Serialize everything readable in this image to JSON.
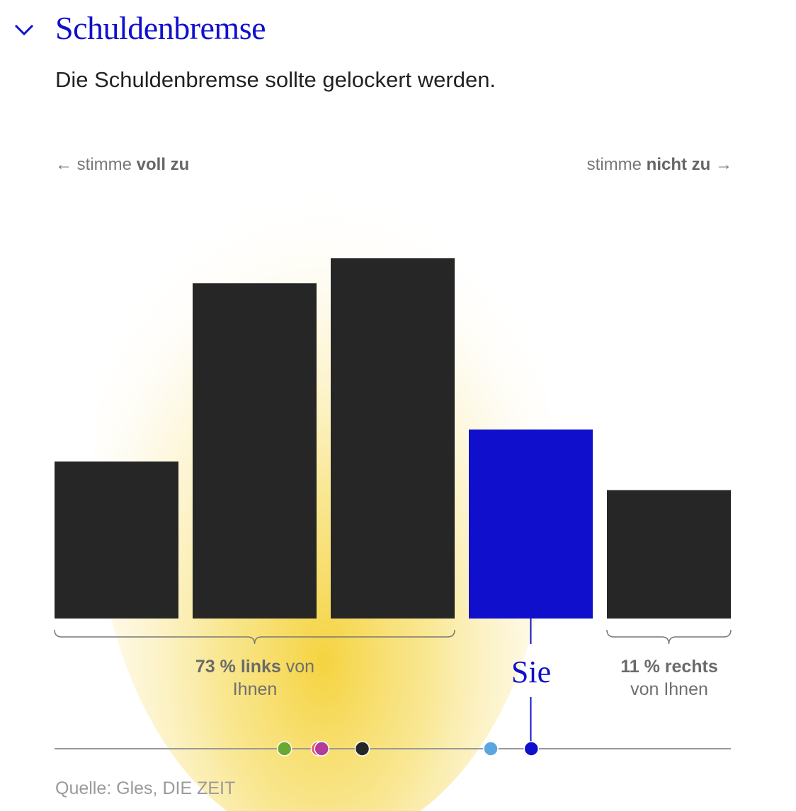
{
  "header": {
    "title": "Schuldenbremse",
    "question": "Die Schuldenbremse sollte gelockert werden."
  },
  "colors": {
    "accent": "#1010cc",
    "bar": "#262626",
    "glow": "#f5d33f"
  },
  "icons": {
    "collapse": "chevron-down-icon",
    "arrow_left": "arrow-left-icon",
    "arrow_right": "arrow-right-icon"
  },
  "scale": {
    "left_prefix": "← stimme ",
    "left_bold": "voll zu",
    "right_prefix": "stimme ",
    "right_bold": "nicht zu",
    "right_suffix": " →"
  },
  "chart_data": {
    "type": "bar",
    "ylim": [
      0,
      100
    ],
    "values": [
      44,
      94,
      101,
      53,
      36
    ],
    "highlight_index": 3,
    "glow_indices": [
      1,
      2
    ]
  },
  "groups": {
    "left_bold": "73 % links",
    "left_rest1": " von",
    "left_rest2": "Ihnen",
    "right_bold": "11 % rechts",
    "right_rest": "von Ihnen",
    "you": "Sie"
  },
  "party_dots": [
    {
      "color": "#6aa832",
      "pos": 0.34
    },
    {
      "color": "#e05a6a",
      "pos": 0.39
    },
    {
      "color": "#b03b98",
      "pos": 0.395
    },
    {
      "color": "#262626",
      "pos": 0.455
    },
    {
      "color": "#5aa6e0",
      "pos": 0.645
    },
    {
      "color": "#1010cc",
      "pos": 0.705
    }
  ],
  "source": "Quelle: Gles, DIE ZEIT"
}
